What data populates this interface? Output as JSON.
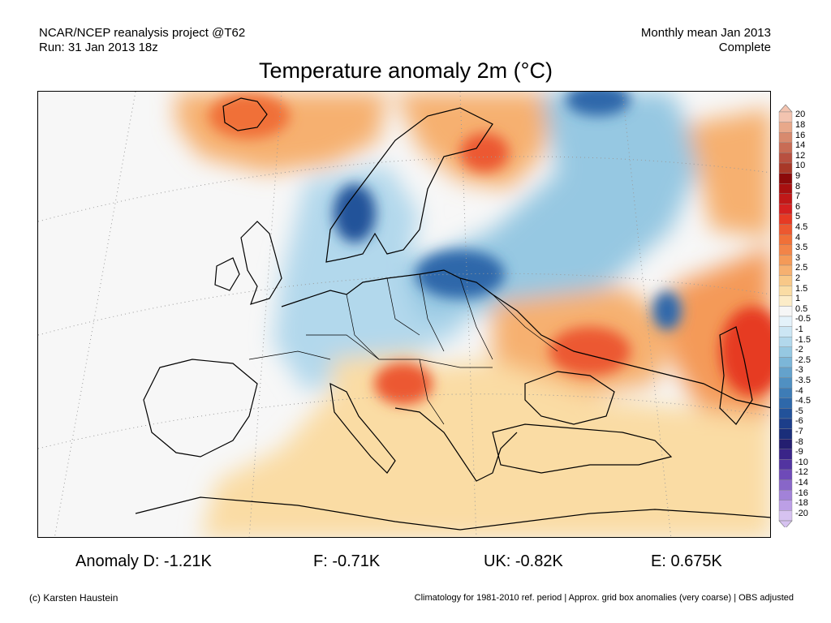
{
  "header": {
    "left_line1": "NCAR/NCEP reanalysis project @T62",
    "left_line2": "Run: 31 Jan 2013 18z",
    "right_line1": "Monthly mean Jan 2013",
    "right_line2": "Complete"
  },
  "title": "Temperature anomaly 2m (°C)",
  "stats": [
    {
      "text": "Anomaly D: -1.21K"
    },
    {
      "text": "F: -0.71K"
    },
    {
      "text": "UK: -0.82K"
    },
    {
      "text": "E: 0.675K"
    }
  ],
  "footer": {
    "credit": "(c) Karsten Haustein",
    "note": "Climatology for 1981-2010 ref. period | Approx. grid box anomalies (very coarse) | OBS adjusted"
  },
  "legend": {
    "levels": [
      "20",
      "18",
      "16",
      "14",
      "12",
      "10",
      "9",
      "8",
      "7",
      "6",
      "5",
      "4.5",
      "4",
      "3.5",
      "3",
      "2.5",
      "2",
      "1.5",
      "1",
      "0.5",
      "-0.5",
      "-1",
      "-1.5",
      "-2",
      "-2.5",
      "-3",
      "-3.5",
      "-4",
      "-4.5",
      "-5",
      "-6",
      "-7",
      "-8",
      "-9",
      "-10",
      "-12",
      "-14",
      "-16",
      "-18",
      "-20"
    ],
    "colors": [
      "#f3c4b0",
      "#e8a88a",
      "#d88a6e",
      "#c86c55",
      "#b85040",
      "#a83828",
      "#8c0a0a",
      "#a81010",
      "#c01818",
      "#d42020",
      "#e63a24",
      "#ec5830",
      "#f07038",
      "#f28448",
      "#f49a58",
      "#f6b070",
      "#f8c888",
      "#fadca4",
      "#fcecc8",
      "#f6f6f6",
      "#e4f2fa",
      "#cce6f4",
      "#b2d8ec",
      "#96c8e2",
      "#7cb6d8",
      "#64a2cc",
      "#5090c2",
      "#3e7cb6",
      "#2e68aa",
      "#22529a",
      "#1c3e8a",
      "#1a2e7a",
      "#241e70",
      "#3a2488",
      "#5234a0",
      "#6e4ab8",
      "#8866c8",
      "#a282d8",
      "#bc9fe6",
      "#d6c2f0"
    ]
  },
  "map": {
    "background_color": "#f7f7f7",
    "regions": [
      {
        "name": "iceland-warm-anomaly",
        "color": "#f6b070",
        "peak_color": "#f07038"
      },
      {
        "name": "scandinavia-cold-anomaly",
        "color": "#b2d8ec",
        "peak_color": "#22529a"
      },
      {
        "name": "kola-warm-anomaly",
        "color": "#f6b070",
        "peak_color": "#ec5830"
      },
      {
        "name": "russia-cold-anomaly",
        "color": "#96c8e2",
        "peak_color": "#2e68aa"
      },
      {
        "name": "ukraine-warm-anomaly",
        "color": "#f6b070",
        "peak_color": "#ec5830"
      },
      {
        "name": "caspian-warm-anomaly",
        "color": "#f49a58",
        "peak_color": "#e63a24"
      },
      {
        "name": "mediterranean-warm-anomaly",
        "color": "#fadca4",
        "peak_color": "#f6b070"
      }
    ]
  }
}
